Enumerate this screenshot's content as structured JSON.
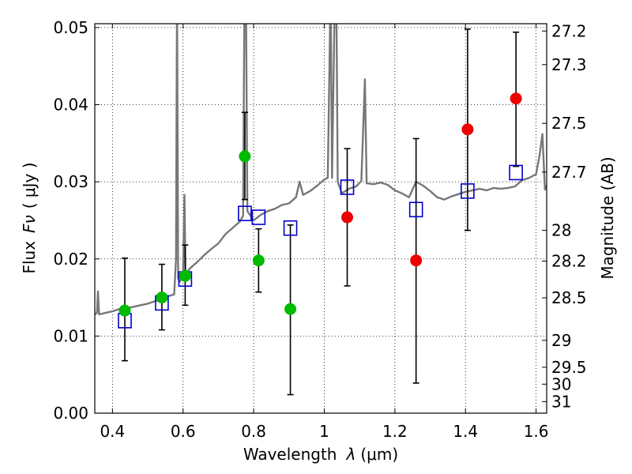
{
  "chart_data": {
    "type": "scatter",
    "xlabel_prefix": "Wavelength",
    "xlabel_symbol": "λ",
    "xlabel_unit": "(μm)",
    "ylabel_prefix": "Flux",
    "ylabel_symbol": "Fν",
    "ylabel_unit": "( μJy )",
    "y2label": "Magnitude (AB)",
    "xlim": [
      0.35,
      1.63
    ],
    "ylim": [
      0.0,
      0.0505
    ],
    "grid": true,
    "x_ticks": [
      0.4,
      0.6,
      0.8,
      1.0,
      1.2,
      1.4,
      1.6
    ],
    "x_tick_labels": [
      "0.4",
      "0.6",
      "0.8",
      "1",
      "1.2",
      "1.4",
      "1.6"
    ],
    "y_ticks": [
      0.0,
      0.01,
      0.02,
      0.03,
      0.04,
      0.05
    ],
    "y_tick_labels": [
      "0.00",
      "0.01",
      "0.02",
      "0.03",
      "0.04",
      "0.05"
    ],
    "y2_ticks": [
      {
        "label": "27.2",
        "flux": 0.04955
      },
      {
        "label": "27.3",
        "flux": 0.04519
      },
      {
        "label": "27.5",
        "flux": 0.03758
      },
      {
        "label": "27.7",
        "flux": 0.03126
      },
      {
        "label": "28",
        "flux": 0.02371
      },
      {
        "label": "28.2",
        "flux": 0.01972
      },
      {
        "label": "28.5",
        "flux": 0.01496
      },
      {
        "label": "29",
        "flux": 0.00944
      },
      {
        "label": "29.5",
        "flux": 0.00596
      },
      {
        "label": "30",
        "flux": 0.00376
      },
      {
        "label": "31",
        "flux": 0.0015
      }
    ],
    "series": [
      {
        "name": "observed (green)",
        "color": "#00bb00",
        "x": [
          0.435,
          0.54,
          0.606,
          0.775,
          0.814,
          0.904
        ],
        "y": [
          0.0133,
          0.015,
          0.0178,
          0.0333,
          0.0198,
          0.0135
        ]
      },
      {
        "name": "observed (red)",
        "color": "#ee0000",
        "x": [
          1.065,
          1.26,
          1.406,
          1.543
        ],
        "y": [
          0.0254,
          0.0198,
          0.0368,
          0.0408
        ]
      },
      {
        "name": "model photometry (blue squares)",
        "color": "#0000cc",
        "x": [
          0.435,
          0.54,
          0.606,
          0.775,
          0.814,
          0.904,
          1.065,
          1.26,
          1.406,
          1.543
        ],
        "y": [
          0.012,
          0.0143,
          0.0174,
          0.0259,
          0.0254,
          0.024,
          0.0293,
          0.0264,
          0.0288,
          0.0312
        ]
      }
    ],
    "error_bars": [
      {
        "x": 0.435,
        "low": 0.0068,
        "high": 0.0201
      },
      {
        "x": 0.54,
        "low": 0.0108,
        "high": 0.0193
      },
      {
        "x": 0.606,
        "low": 0.014,
        "high": 0.0218
      },
      {
        "x": 0.775,
        "low": 0.0277,
        "high": 0.039
      },
      {
        "x": 0.814,
        "low": 0.0157,
        "high": 0.0239
      },
      {
        "x": 0.904,
        "low": 0.0024,
        "high": 0.0244
      },
      {
        "x": 1.065,
        "low": 0.0165,
        "high": 0.0343
      },
      {
        "x": 1.26,
        "low": 0.0039,
        "high": 0.0356
      },
      {
        "x": 1.406,
        "low": 0.0237,
        "high": 0.0498
      },
      {
        "x": 1.543,
        "low": 0.032,
        "high": 0.0494
      }
    ],
    "template_spectrum": {
      "color": "#777777",
      "points": [
        [
          0.35,
          0.0128
        ],
        [
          0.356,
          0.013
        ],
        [
          0.359,
          0.0158
        ],
        [
          0.362,
          0.0128
        ],
        [
          0.38,
          0.013
        ],
        [
          0.4,
          0.0132
        ],
        [
          0.42,
          0.0135
        ],
        [
          0.44,
          0.0136
        ],
        [
          0.46,
          0.0138
        ],
        [
          0.48,
          0.014
        ],
        [
          0.5,
          0.0142
        ],
        [
          0.52,
          0.0145
        ],
        [
          0.54,
          0.0148
        ],
        [
          0.56,
          0.0152
        ],
        [
          0.575,
          0.0154
        ],
        [
          0.58,
          0.02
        ],
        [
          0.583,
          0.055
        ],
        [
          0.586,
          0.0175
        ],
        [
          0.59,
          0.017
        ],
        [
          0.6,
          0.0178
        ],
        [
          0.604,
          0.0283
        ],
        [
          0.607,
          0.018
        ],
        [
          0.62,
          0.0188
        ],
        [
          0.64,
          0.0196
        ],
        [
          0.66,
          0.0205
        ],
        [
          0.68,
          0.0213
        ],
        [
          0.7,
          0.022
        ],
        [
          0.72,
          0.0232
        ],
        [
          0.74,
          0.024
        ],
        [
          0.76,
          0.0248
        ],
        [
          0.77,
          0.0256
        ],
        [
          0.774,
          0.055
        ],
        [
          0.778,
          0.055
        ],
        [
          0.782,
          0.0262
        ],
        [
          0.8,
          0.025
        ],
        [
          0.82,
          0.0257
        ],
        [
          0.84,
          0.0262
        ],
        [
          0.86,
          0.0265
        ],
        [
          0.88,
          0.027
        ],
        [
          0.9,
          0.0272
        ],
        [
          0.92,
          0.028
        ],
        [
          0.93,
          0.03
        ],
        [
          0.94,
          0.0283
        ],
        [
          0.96,
          0.0288
        ],
        [
          0.98,
          0.0295
        ],
        [
          1.0,
          0.0303
        ],
        [
          1.01,
          0.0305
        ],
        [
          1.018,
          0.055
        ],
        [
          1.022,
          0.0305
        ],
        [
          1.03,
          0.055
        ],
        [
          1.034,
          0.055
        ],
        [
          1.038,
          0.03
        ],
        [
          1.05,
          0.0285
        ],
        [
          1.07,
          0.0291
        ],
        [
          1.09,
          0.0294
        ],
        [
          1.105,
          0.0301
        ],
        [
          1.115,
          0.0433
        ],
        [
          1.12,
          0.0298
        ],
        [
          1.14,
          0.0297
        ],
        [
          1.16,
          0.0299
        ],
        [
          1.18,
          0.0296
        ],
        [
          1.2,
          0.0289
        ],
        [
          1.22,
          0.0285
        ],
        [
          1.24,
          0.028
        ],
        [
          1.26,
          0.03
        ],
        [
          1.28,
          0.0295
        ],
        [
          1.3,
          0.0288
        ],
        [
          1.32,
          0.028
        ],
        [
          1.34,
          0.0277
        ],
        [
          1.36,
          0.0281
        ],
        [
          1.38,
          0.0284
        ],
        [
          1.4,
          0.0287
        ],
        [
          1.42,
          0.0289
        ],
        [
          1.44,
          0.0291
        ],
        [
          1.46,
          0.0289
        ],
        [
          1.48,
          0.0292
        ],
        [
          1.5,
          0.0291
        ],
        [
          1.52,
          0.0292
        ],
        [
          1.54,
          0.0294
        ],
        [
          1.56,
          0.0302
        ],
        [
          1.58,
          0.0305
        ],
        [
          1.6,
          0.031
        ],
        [
          1.61,
          0.0335
        ],
        [
          1.618,
          0.0362
        ],
        [
          1.625,
          0.029
        ],
        [
          1.63,
          0.0295
        ]
      ]
    }
  }
}
